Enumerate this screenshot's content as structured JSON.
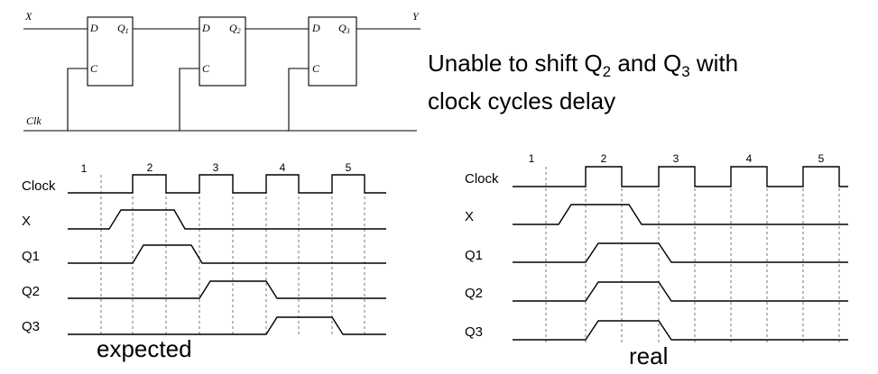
{
  "circuit": {
    "input_label": "X",
    "output_label": "Y",
    "clock_label": "Clk",
    "flipflops": [
      {
        "d": "D",
        "c": "C",
        "q": "Q",
        "q_sub": "1"
      },
      {
        "d": "D",
        "c": "C",
        "q": "Q",
        "q_sub": "2"
      },
      {
        "d": "D",
        "c": "C",
        "q": "Q",
        "q_sub": "3"
      }
    ]
  },
  "note": {
    "line1_a": "Unable to shift Q",
    "line1_sub1": "2",
    "line1_b": " and Q",
    "line1_sub2": "3",
    "line1_c": " with",
    "line2": "clock cycles delay"
  },
  "timing_expected": {
    "caption": "expected",
    "cycles": [
      "1",
      "2",
      "3",
      "4",
      "5"
    ],
    "signals": [
      "Clock",
      "X",
      "Q1",
      "Q2",
      "Q3"
    ]
  },
  "timing_real": {
    "caption": "real",
    "cycles": [
      "1",
      "2",
      "3",
      "4",
      "5"
    ],
    "signals": [
      "Clock",
      "X",
      "Q1",
      "Q2",
      "Q3"
    ]
  }
}
